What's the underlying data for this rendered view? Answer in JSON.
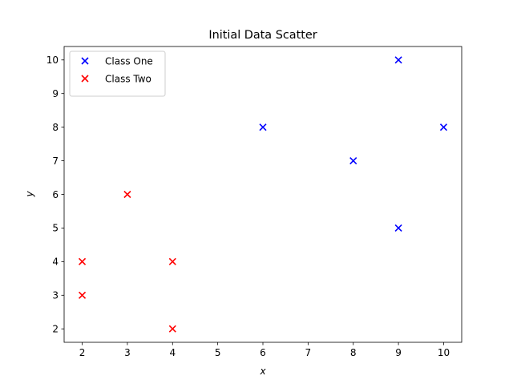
{
  "chart_data": {
    "type": "scatter",
    "title": "Initial Data Scatter",
    "xlabel": "x",
    "ylabel": "y",
    "xlim": [
      1.6,
      10.4
    ],
    "ylim": [
      1.6,
      10.4
    ],
    "x_ticks": [
      2,
      3,
      4,
      5,
      6,
      7,
      8,
      9,
      10
    ],
    "y_ticks": [
      2,
      3,
      4,
      5,
      6,
      7,
      8,
      9,
      10
    ],
    "grid": false,
    "legend_position": "upper-left",
    "marker": "x",
    "series": [
      {
        "name": "Class One",
        "color": "#0000ff",
        "points": [
          [
            6,
            8
          ],
          [
            8,
            7
          ],
          [
            9,
            10
          ],
          [
            9,
            5
          ],
          [
            10,
            8
          ]
        ]
      },
      {
        "name": "Class Two",
        "color": "#ff0000",
        "points": [
          [
            2,
            3
          ],
          [
            2,
            4
          ],
          [
            3,
            6
          ],
          [
            4,
            2
          ],
          [
            4,
            4
          ]
        ]
      }
    ]
  }
}
